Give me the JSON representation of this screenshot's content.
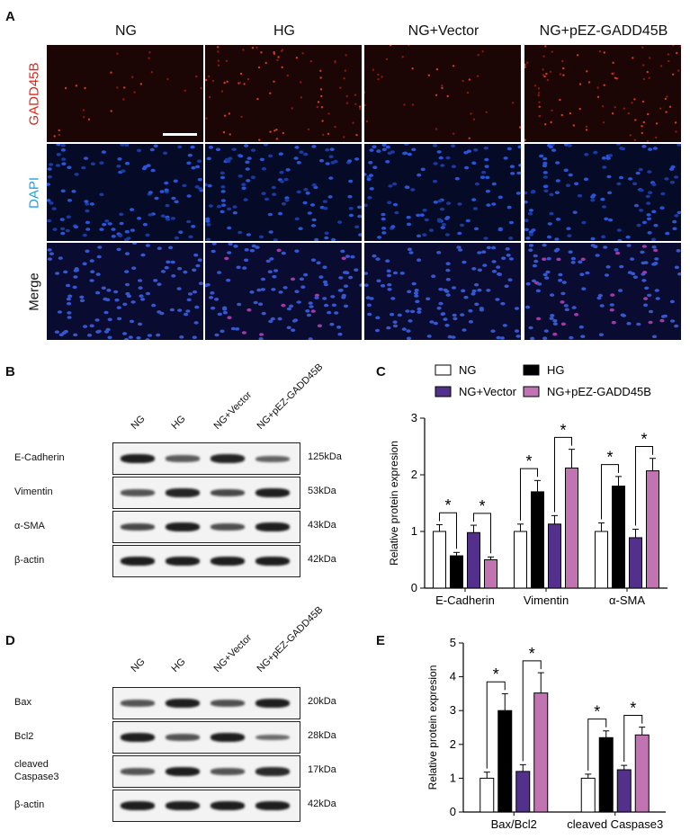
{
  "panel_a": {
    "letter": "A",
    "columns": [
      "NG",
      "HG",
      "NG+Vector",
      "NG+pEZ-GADD45B"
    ],
    "rows": [
      "GADD45B",
      "DAPI",
      "Merge"
    ],
    "row_colors": {
      "GADD45B": "#e0241b",
      "DAPI": "#1ea0e6",
      "Merge": "#111111"
    }
  },
  "panel_b": {
    "letter": "B",
    "lanes": [
      "NG",
      "HG",
      "NG+Vector",
      "NG+pEZ-GADD45B"
    ],
    "proteins": [
      {
        "name": "E-Cadherin",
        "kda": "125kDa",
        "intensity": [
          1.0,
          0.55,
          0.95,
          0.5
        ]
      },
      {
        "name": "Vimentin",
        "kda": "53kDa",
        "intensity": [
          0.6,
          0.95,
          0.7,
          1.0
        ]
      },
      {
        "name": "α-SMA",
        "kda": "43kDa",
        "intensity": [
          0.7,
          1.0,
          0.65,
          1.0
        ]
      },
      {
        "name": "β-actin",
        "kda": "42kDa",
        "intensity": [
          1.0,
          1.0,
          1.0,
          1.0
        ]
      }
    ]
  },
  "panel_d": {
    "letter": "D",
    "lanes": [
      "NG",
      "HG",
      "NG+Vector",
      "NG+pEZ-GADD45B"
    ],
    "proteins": [
      {
        "name": "Bax",
        "kda": "20kDa",
        "intensity": [
          0.6,
          1.0,
          0.65,
          1.0
        ]
      },
      {
        "name": "Bcl2",
        "kda": "28kDa",
        "intensity": [
          1.0,
          0.6,
          1.0,
          0.45
        ]
      },
      {
        "name": "cleaved\nCaspase3",
        "kda": "17kDa",
        "intensity": [
          0.6,
          1.0,
          0.6,
          0.9
        ]
      },
      {
        "name": "β-actin",
        "kda": "42kDa",
        "intensity": [
          1.0,
          1.0,
          1.0,
          1.0
        ]
      }
    ]
  },
  "chart_data": [
    {
      "panel": "C",
      "type": "bar",
      "ylabel": "Relative protein expresion",
      "ylim": [
        0,
        3
      ],
      "yticks": [
        0,
        1,
        2,
        3
      ],
      "categories": [
        "E-Cadherin",
        "Vimentin",
        "α-SMA"
      ],
      "legend_position": "top",
      "series": [
        {
          "name": "NG",
          "color": "#ffffff",
          "values": [
            1.0,
            1.0,
            1.0
          ],
          "errors": [
            0.12,
            0.13,
            0.15
          ]
        },
        {
          "name": "HG",
          "color": "#000000",
          "values": [
            0.57,
            1.7,
            1.8
          ],
          "errors": [
            0.06,
            0.2,
            0.17
          ]
        },
        {
          "name": "NG+Vector",
          "color": "#53308c",
          "values": [
            0.98,
            1.13,
            0.89
          ],
          "errors": [
            0.13,
            0.15,
            0.15
          ]
        },
        {
          "name": "NG+pEZ-GADD45B",
          "color": "#c173b2",
          "values": [
            0.5,
            2.12,
            2.07
          ],
          "errors": [
            0.05,
            0.33,
            0.22
          ]
        }
      ],
      "significance": [
        {
          "category": 0,
          "pair": [
            0,
            1
          ],
          "label": "*"
        },
        {
          "category": 0,
          "pair": [
            2,
            3
          ],
          "label": "*"
        },
        {
          "category": 1,
          "pair": [
            0,
            1
          ],
          "label": "*"
        },
        {
          "category": 1,
          "pair": [
            2,
            3
          ],
          "label": "*"
        },
        {
          "category": 2,
          "pair": [
            0,
            1
          ],
          "label": "*"
        },
        {
          "category": 2,
          "pair": [
            2,
            3
          ],
          "label": "*"
        }
      ]
    },
    {
      "panel": "E",
      "type": "bar",
      "ylabel": "Relative protein expresion",
      "ylim": [
        0,
        5
      ],
      "yticks": [
        0,
        1,
        2,
        3,
        4,
        5
      ],
      "categories": [
        "Bax/Bcl2",
        "cleaved Caspase3"
      ],
      "series": [
        {
          "name": "NG",
          "color": "#ffffff",
          "values": [
            1.0,
            1.0
          ],
          "errors": [
            0.18,
            0.12
          ]
        },
        {
          "name": "HG",
          "color": "#000000",
          "values": [
            3.0,
            2.2
          ],
          "errors": [
            0.5,
            0.2
          ]
        },
        {
          "name": "NG+Vector",
          "color": "#53308c",
          "values": [
            1.2,
            1.25
          ],
          "errors": [
            0.2,
            0.13
          ]
        },
        {
          "name": "NG+pEZ-GADD45B",
          "color": "#c173b2",
          "values": [
            3.52,
            2.28
          ],
          "errors": [
            0.6,
            0.23
          ]
        }
      ],
      "significance": [
        {
          "category": 0,
          "pair": [
            0,
            1
          ],
          "label": "*"
        },
        {
          "category": 0,
          "pair": [
            2,
            3
          ],
          "label": "*"
        },
        {
          "category": 1,
          "pair": [
            0,
            1
          ],
          "label": "*"
        },
        {
          "category": 1,
          "pair": [
            2,
            3
          ],
          "label": "*"
        }
      ]
    }
  ]
}
